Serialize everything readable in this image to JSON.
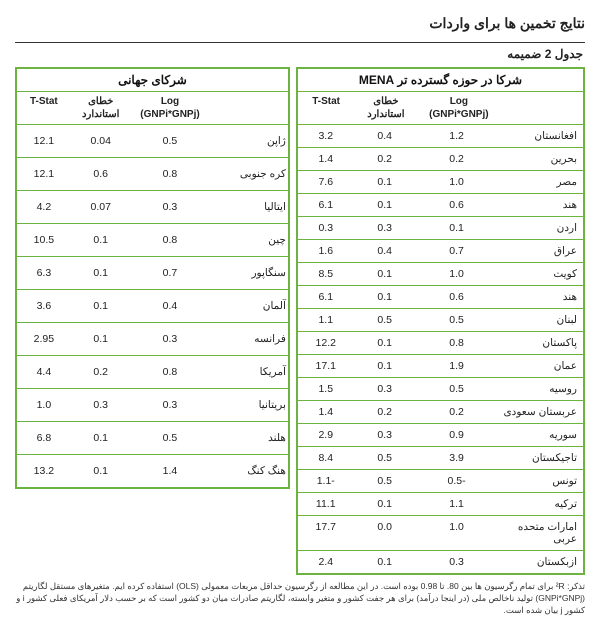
{
  "title": "نتایج تخمین ها برای واردات",
  "table_label": "جدول 2 ضمیمه",
  "headers": {
    "mena_title": "شرکا در حوزه گسترده تر MENA",
    "world_title": "شرکای جهانی",
    "col_log": "Log (GNPi*GNPj)",
    "col_se": "خطای استاندارد",
    "col_t": "T-Stat"
  },
  "mena_rows": [
    {
      "name": "افغانستان",
      "log": "1.2",
      "se": "0.4",
      "t": "3.2"
    },
    {
      "name": "بحرین",
      "log": "0.2",
      "se": "0.2",
      "t": "1.4"
    },
    {
      "name": "مصر",
      "log": "1.0",
      "se": "0.1",
      "t": "7.6"
    },
    {
      "name": "هند",
      "log": "0.6",
      "se": "0.1",
      "t": "6.1"
    },
    {
      "name": "اردن",
      "log": "0.1",
      "se": "0.3",
      "t": "0.3"
    },
    {
      "name": "عراق",
      "log": "0.7",
      "se": "0.4",
      "t": "1.6"
    },
    {
      "name": "کویت",
      "log": "1.0",
      "se": "0.1",
      "t": "8.5"
    },
    {
      "name": "هند",
      "log": "0.6",
      "se": "0.1",
      "t": "6.1"
    },
    {
      "name": "لبنان",
      "log": "0.5",
      "se": "0.5",
      "t": "1.1"
    },
    {
      "name": "پاکستان",
      "log": "0.8",
      "se": "0.1",
      "t": "12.2"
    },
    {
      "name": "عمان",
      "log": "1.9",
      "se": "0.1",
      "t": "17.1"
    },
    {
      "name": "روسیه",
      "log": "0.5",
      "se": "0.3",
      "t": "1.5"
    },
    {
      "name": "عربستان سعودی",
      "log": "0.2",
      "se": "0.2",
      "t": "1.4"
    },
    {
      "name": "سوریه",
      "log": "0.9",
      "se": "0.3",
      "t": "2.9"
    },
    {
      "name": "تاجیکستان",
      "log": "3.9",
      "se": "0.5",
      "t": "8.4"
    },
    {
      "name": "تونس",
      "log": "-0.5",
      "se": "0.5",
      "t": "-1.1"
    },
    {
      "name": "ترکیه",
      "log": "1.1",
      "se": "0.1",
      "t": "11.1"
    },
    {
      "name": "امارات متحده عربی",
      "log": "1.0",
      "se": "0.0",
      "t": "17.7"
    },
    {
      "name": "ازبکستان",
      "log": "0.3",
      "se": "0.1",
      "t": "2.4"
    }
  ],
  "world_rows": [
    {
      "name": "ژاپن",
      "log": "0.5",
      "se": "0.04",
      "t": "12.1"
    },
    {
      "name": "کره جنوبی",
      "log": "0.8",
      "se": "0.6",
      "t": "12.1"
    },
    {
      "name": "ایتالیا",
      "log": "0.3",
      "se": "0.07",
      "t": "4.2"
    },
    {
      "name": "چین",
      "log": "0.8",
      "se": "0.1",
      "t": "10.5"
    },
    {
      "name": "سنگاپور",
      "log": "0.7",
      "se": "0.1",
      "t": "6.3"
    },
    {
      "name": "آلمان",
      "log": "0.4",
      "se": "0.1",
      "t": "3.6"
    },
    {
      "name": "فرانسه",
      "log": "0.3",
      "se": "0.1",
      "t": "2.95"
    },
    {
      "name": "آمریکا",
      "log": "0.8",
      "se": "0.2",
      "t": "4.4"
    },
    {
      "name": "بریتانیا",
      "log": "0.3",
      "se": "0.3",
      "t": "1.0"
    },
    {
      "name": "هلند",
      "log": "0.5",
      "se": "0.1",
      "t": "6.8"
    },
    {
      "name": "هنگ کنگ",
      "log": "1.4",
      "se": "0.1",
      "t": "13.2"
    }
  ],
  "footnote": "تذکر: ²R برای تمام رگرسیون ها بین 80. تا 0.98 بوده است. در این مطالعه از رگرسیون حداقل مربعات معمولی (OLS) استفاده کرده ایم. متغیرهای مستقل لگاریتم (GNPi*GNPj) تولید ناخالص ملی (در اینجا درآمد) برای هر جفت کشور و متغیر وابسته، لگاریتم صادرات میان دو کشور است که بر حسب دلار آمریکای فعلی کشور i و کشور j بیان شده است."
}
